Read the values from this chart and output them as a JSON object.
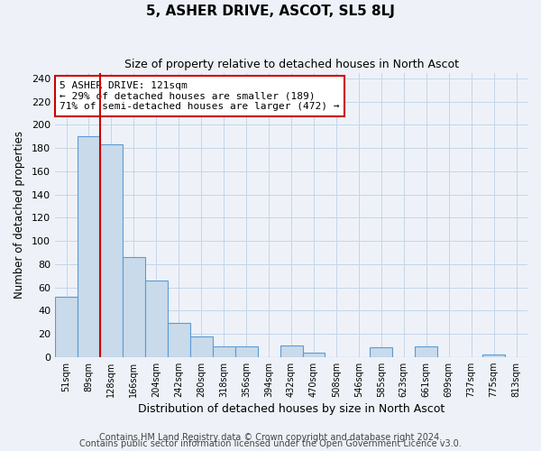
{
  "title": "5, ASHER DRIVE, ASCOT, SL5 8LJ",
  "subtitle": "Size of property relative to detached houses in North Ascot",
  "xlabel": "Distribution of detached houses by size in North Ascot",
  "ylabel": "Number of detached properties",
  "footnote1": "Contains HM Land Registry data © Crown copyright and database right 2024.",
  "footnote2": "Contains public sector information licensed under the Open Government Licence v3.0.",
  "bar_labels": [
    "51sqm",
    "89sqm",
    "128sqm",
    "166sqm",
    "204sqm",
    "242sqm",
    "280sqm",
    "318sqm",
    "356sqm",
    "394sqm",
    "432sqm",
    "470sqm",
    "508sqm",
    "546sqm",
    "585sqm",
    "623sqm",
    "661sqm",
    "699sqm",
    "737sqm",
    "775sqm",
    "813sqm"
  ],
  "bar_values": [
    52,
    190,
    183,
    86,
    66,
    29,
    18,
    9,
    9,
    0,
    10,
    4,
    0,
    0,
    8,
    0,
    9,
    0,
    0,
    2,
    0
  ],
  "bar_color": "#c9daea",
  "bar_edge_color": "#5b9bd5",
  "background_color": "#eef2f8",
  "grid_color": "#c5d5e8",
  "vline_color": "#cc0000",
  "vline_bar_index": 2,
  "annotation_line1": "5 ASHER DRIVE: 121sqm",
  "annotation_line2": "← 29% of detached houses are smaller (189)",
  "annotation_line3": "71% of semi-detached houses are larger (472) →",
  "annotation_box_color": "#ffffff",
  "annotation_box_edge_color": "#cc0000",
  "ylim": [
    0,
    245
  ],
  "yticks": [
    0,
    20,
    40,
    60,
    80,
    100,
    120,
    140,
    160,
    180,
    200,
    220,
    240
  ],
  "title_fontsize": 11,
  "subtitle_fontsize": 9,
  "xlabel_fontsize": 9,
  "ylabel_fontsize": 8.5,
  "footnote_fontsize": 7
}
